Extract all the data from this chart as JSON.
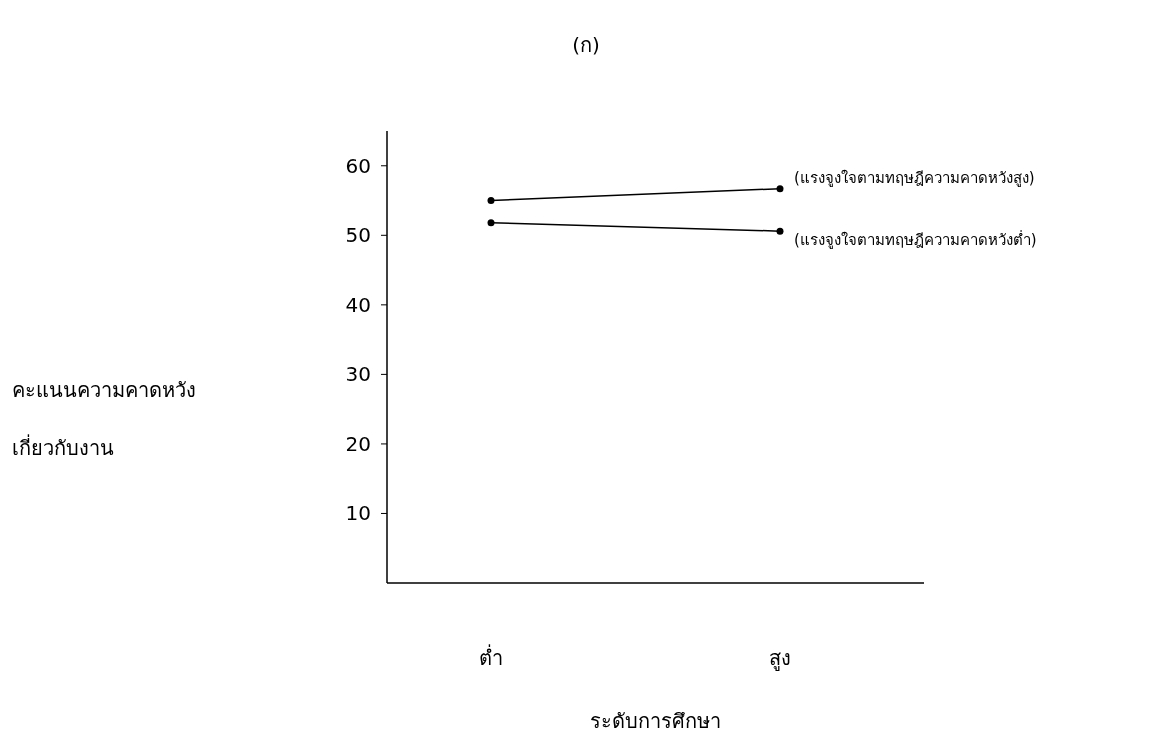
{
  "chart_data": {
    "type": "line",
    "title": "(ก)",
    "xlabel": "ระดับการศึกษา",
    "ylabel": "คะแนนความคาดหวัง\nเกี่ยวกับงาน",
    "categories": [
      "ต่ำ",
      "สูง"
    ],
    "series": [
      {
        "name": "(แรงจูงใจตามทฤษฎีความคาดหวังสูง)",
        "color": "#000000",
        "values": [
          55.0,
          56.7
        ]
      },
      {
        "name": "(แรงจูงใจตามทฤษฎีความคาดหวังต่ำ)",
        "color": "#000000",
        "values": [
          51.8,
          50.6
        ]
      }
    ],
    "ylim": [
      0,
      65
    ],
    "yticks": [
      10,
      20,
      30,
      40,
      50,
      60
    ],
    "grid": false,
    "legend": false,
    "marker": "circle",
    "line_style": "solid"
  }
}
